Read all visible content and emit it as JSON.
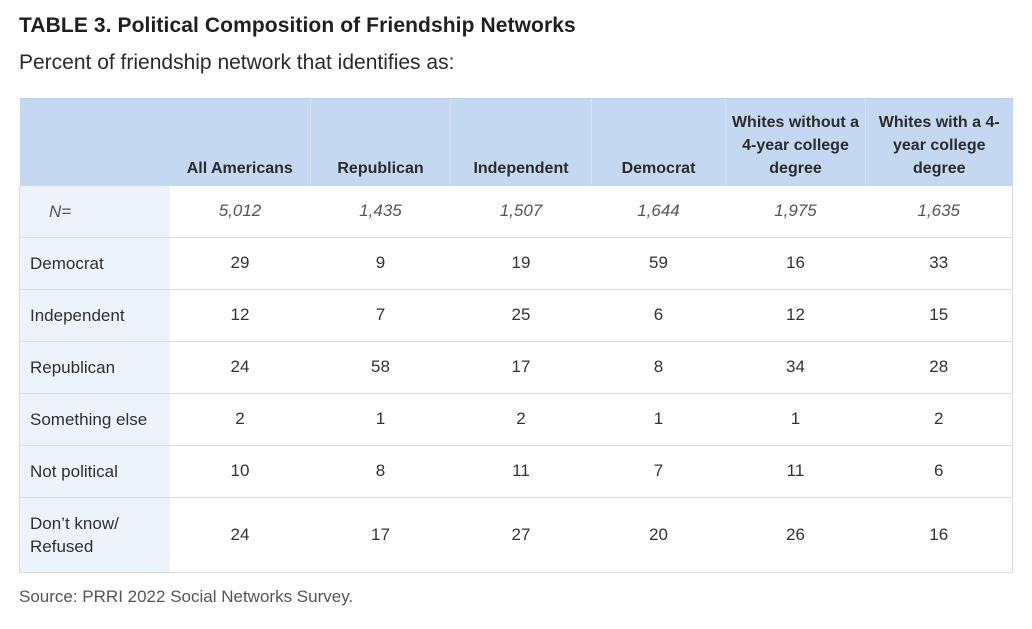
{
  "title": "TABLE 3. Political Composition of Friendship Networks",
  "subtitle": "Percent of friendship network that identifies as:",
  "columns": [
    "All Americans",
    "Republican",
    "Independent",
    "Democrat",
    "Whites without a 4-year college degree",
    "Whites with a 4-year college degree"
  ],
  "n_row": {
    "label": "N=",
    "values": [
      "5,012",
      "1,435",
      "1,507",
      "1,644",
      "1,975",
      "1,635"
    ]
  },
  "rows": [
    {
      "label": "Democrat",
      "values": [
        "29",
        "9",
        "19",
        "59",
        "16",
        "33"
      ]
    },
    {
      "label": "Independent",
      "values": [
        "12",
        "7",
        "25",
        "6",
        "12",
        "15"
      ]
    },
    {
      "label": "Republican",
      "values": [
        "24",
        "58",
        "17",
        "8",
        "34",
        "28"
      ]
    },
    {
      "label": "Something else",
      "values": [
        "2",
        "1",
        "2",
        "1",
        "1",
        "2"
      ]
    },
    {
      "label": "Not political",
      "values": [
        "10",
        "8",
        "11",
        "7",
        "11",
        "6"
      ]
    },
    {
      "label": "Don’t know/ Refused",
      "values": [
        "24",
        "17",
        "27",
        "20",
        "26",
        "16"
      ]
    }
  ],
  "source": "Source: PRRI 2022 Social Networks Survey.",
  "colors": {
    "header_bg": "#c5d8f1",
    "row_label_bg": "#edf3fb"
  }
}
